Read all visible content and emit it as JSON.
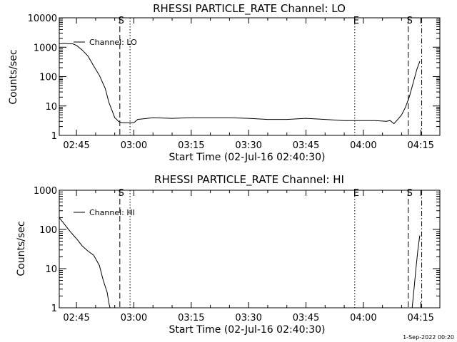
{
  "chart_data": [
    {
      "type": "line",
      "title": "RHESSI PARTICLE_RATE Channel: LO",
      "xlabel": "Start Time (02-Jul-16 02:40:30)",
      "ylabel": "Counts/sec",
      "yscale": "log",
      "ylim": [
        1,
        10000
      ],
      "xlim": [
        "02:40:30",
        "04:20:00"
      ],
      "xticks": [
        "02:45",
        "03:00",
        "03:15",
        "03:30",
        "03:45",
        "04:00",
        "04:15"
      ],
      "yticks": [
        "1",
        "10",
        "100",
        "1000",
        "10000"
      ],
      "grid": false,
      "legend_position": "top-left",
      "series": [
        {
          "name": "Channel: LO",
          "x": [
            "02:40:30",
            "02:42:00",
            "02:43:00",
            "02:44:00",
            "02:45:00",
            "02:46:30",
            "02:48:00",
            "02:49:30",
            "02:51:00",
            "02:52:30",
            "02:53:30",
            "02:54:30",
            "02:55:00",
            "02:55:30",
            "02:56:00",
            "02:56:30",
            "02:57:00",
            "02:58:00",
            "02:59:00",
            "03:00:00",
            "03:01:00",
            "03:05:00",
            "03:10:00",
            "03:15:00",
            "03:20:00",
            "03:25:00",
            "03:30:00",
            "03:35:00",
            "03:40:00",
            "03:45:00",
            "03:50:00",
            "03:55:00",
            "04:00:00",
            "04:03:00",
            "04:06:00",
            "04:07:00",
            "04:08:00",
            "04:09:00",
            "04:10:00",
            "04:11:00",
            "04:12:00",
            "04:13:00",
            "04:14:00",
            "04:14:45"
          ],
          "values": [
            1300,
            1350,
            1300,
            1300,
            1150,
            800,
            500,
            230,
            110,
            40,
            13,
            6,
            4,
            3.5,
            3,
            2.8,
            2.7,
            2.7,
            2.7,
            2.7,
            3.5,
            4,
            3.8,
            4,
            4,
            4,
            3.8,
            3.5,
            3.5,
            3.8,
            3.5,
            3.2,
            3.2,
            3.2,
            3,
            3.2,
            2.5,
            3.5,
            5,
            9,
            20,
            60,
            180,
            330
          ]
        }
      ],
      "markers": [
        {
          "label": "S",
          "style": "dashed",
          "x": "02:56:20"
        },
        {
          "label": "",
          "style": "dotted",
          "x": "02:59:00"
        },
        {
          "label": "E",
          "style": "dotted",
          "x": "03:57:45"
        },
        {
          "label": "S",
          "style": "dashed",
          "x": "04:11:45"
        },
        {
          "label": "",
          "style": "dash-dot",
          "x": "04:15:15"
        }
      ]
    },
    {
      "type": "line",
      "title": "RHESSI PARTICLE_RATE Channel: HI",
      "xlabel": "Start Time (02-Jul-16 02:40:30)",
      "ylabel": "Counts/sec",
      "yscale": "log",
      "ylim": [
        1,
        1000
      ],
      "xlim": [
        "02:40:30",
        "04:20:00"
      ],
      "xticks": [
        "02:45",
        "03:00",
        "03:15",
        "03:30",
        "03:45",
        "04:00",
        "04:15"
      ],
      "yticks": [
        "1",
        "10",
        "100",
        "1000"
      ],
      "grid": false,
      "legend_position": "top-left",
      "series": [
        {
          "name": "Channel: HI",
          "segments": [
            {
              "x": [
                "02:40:30",
                "02:42:00",
                "02:43:30",
                "02:45:00",
                "02:46:30",
                "02:48:00",
                "02:49:30",
                "02:51:00",
                "02:52:00",
                "02:53:00",
                "02:53:30",
                "02:53:45"
              ],
              "values": [
                200,
                130,
                85,
                58,
                38,
                28,
                22,
                12,
                5,
                2.5,
                1.3,
                1
              ]
            },
            {
              "x": [
                "04:12:45",
                "04:13:15",
                "04:13:45",
                "04:14:15",
                "04:14:45"
              ],
              "values": [
                1,
                3,
                10,
                30,
                70
              ]
            }
          ]
        }
      ],
      "markers": [
        {
          "label": "S",
          "style": "dashed",
          "x": "02:56:20"
        },
        {
          "label": "",
          "style": "dotted",
          "x": "02:59:00"
        },
        {
          "label": "E",
          "style": "dotted",
          "x": "03:57:45"
        },
        {
          "label": "S",
          "style": "dashed",
          "x": "04:11:45"
        },
        {
          "label": "",
          "style": "dash-dot",
          "x": "04:15:15"
        }
      ]
    }
  ],
  "footer": {
    "timestamp": "1-Sep-2022 00:20"
  }
}
